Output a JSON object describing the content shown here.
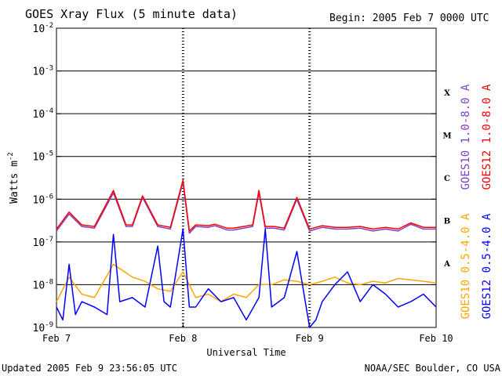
{
  "chart_data": {
    "type": "line",
    "title": "GOES Xray Flux (5 minute data)",
    "begin_text": "Begin:  2005 Feb 7 0000 UTC",
    "xlabel": "Universal Time",
    "ylabel_base": "Watts m",
    "ylabel_exp": "-2",
    "y_scale": "log",
    "ylim": [
      1e-09,
      0.01
    ],
    "x_ticks": [
      "Feb 7",
      "Feb 8",
      "Feb 9",
      "Feb 10"
    ],
    "y_ticks": [
      {
        "base": "10",
        "exp": "-2"
      },
      {
        "base": "10",
        "exp": "-3"
      },
      {
        "base": "10",
        "exp": "-4"
      },
      {
        "base": "10",
        "exp": "-5"
      },
      {
        "base": "10",
        "exp": "-6"
      },
      {
        "base": "10",
        "exp": "-7"
      },
      {
        "base": "10",
        "exp": "-8"
      },
      {
        "base": "10",
        "exp": "-9"
      }
    ],
    "flare_classes": [
      "X",
      "M",
      "C",
      "B",
      "A"
    ],
    "x_unit": "days since 2005 Feb 7 0000 UTC",
    "series": [
      {
        "name": "GOES12 1.0-8.0 A",
        "color": "#ff0000",
        "x": [
          0,
          0.1,
          0.2,
          0.3,
          0.45,
          0.55,
          0.6,
          0.68,
          0.8,
          0.9,
          1.0,
          1.05,
          1.1,
          1.2,
          1.25,
          1.35,
          1.4,
          1.55,
          1.6,
          1.65,
          1.72,
          1.8,
          1.9,
          2.0,
          2.1,
          2.2,
          2.3,
          2.4,
          2.5,
          2.6,
          2.7,
          2.8,
          2.9,
          3.0
        ],
        "y": [
          2e-07,
          5e-07,
          2.5e-07,
          2.3e-07,
          1.6e-06,
          2.5e-07,
          2.5e-07,
          1.2e-06,
          2.5e-07,
          2.2e-07,
          2.8e-06,
          1.8e-07,
          2.5e-07,
          2.4e-07,
          2.6e-07,
          2.1e-07,
          2.1e-07,
          2.5e-07,
          1.6e-06,
          2.3e-07,
          2.3e-07,
          2.1e-07,
          1.1e-06,
          2e-07,
          2.4e-07,
          2.2e-07,
          2.2e-07,
          2.3e-07,
          2e-07,
          2.2e-07,
          2e-07,
          2.8e-07,
          2.2e-07,
          2.2e-07
        ]
      },
      {
        "name": "GOES10 1.0-8.0 A",
        "color": "#8040c0",
        "x": [
          0,
          0.1,
          0.2,
          0.3,
          0.45,
          0.55,
          0.6,
          0.68,
          0.8,
          0.9,
          1.0,
          1.05,
          1.1,
          1.2,
          1.25,
          1.35,
          1.4,
          1.55,
          1.6,
          1.65,
          1.72,
          1.8,
          1.9,
          2.0,
          2.1,
          2.2,
          2.3,
          2.4,
          2.5,
          2.6,
          2.7,
          2.8,
          2.9,
          3.0
        ],
        "y": [
          1.8e-07,
          4.5e-07,
          2.3e-07,
          2.1e-07,
          1.4e-06,
          2.3e-07,
          2.3e-07,
          1.1e-06,
          2.3e-07,
          2e-07,
          2.5e-06,
          1.6e-07,
          2.3e-07,
          2.2e-07,
          2.4e-07,
          1.9e-07,
          1.9e-07,
          2.3e-07,
          1.4e-06,
          2.1e-07,
          2.1e-07,
          1.9e-07,
          1e-06,
          1.8e-07,
          2.2e-07,
          2e-07,
          2e-07,
          2.1e-07,
          1.8e-07,
          2e-07,
          1.8e-07,
          2.6e-07,
          2e-07,
          2e-07
        ]
      },
      {
        "name": "GOES10 0.5-4.0 A",
        "color": "#ffa500",
        "x": [
          0,
          0.1,
          0.2,
          0.3,
          0.45,
          0.6,
          0.7,
          0.8,
          0.9,
          1.0,
          1.1,
          1.2,
          1.3,
          1.4,
          1.5,
          1.6,
          1.7,
          1.8,
          1.9,
          2.0,
          2.1,
          2.2,
          2.3,
          2.4,
          2.5,
          2.6,
          2.7,
          2.8,
          2.9,
          3.0
        ],
        "y": [
          4e-09,
          1.5e-08,
          6e-09,
          5e-09,
          3e-08,
          1.5e-08,
          1.2e-08,
          8e-09,
          7e-09,
          2e-08,
          5e-09,
          6e-09,
          4e-09,
          6e-09,
          5e-09,
          1e-08,
          1e-08,
          1.3e-08,
          1.2e-08,
          1e-08,
          1.2e-08,
          1.5e-08,
          1.1e-08,
          1e-08,
          1.2e-08,
          1.1e-08,
          1.4e-08,
          1.3e-08,
          1.2e-08,
          1.1e-08
        ]
      },
      {
        "name": "GOES12 0.5-4.0 A",
        "color": "#0000ff",
        "x": [
          0,
          0.05,
          0.1,
          0.15,
          0.2,
          0.3,
          0.4,
          0.45,
          0.5,
          0.6,
          0.7,
          0.8,
          0.85,
          0.9,
          1.0,
          1.05,
          1.1,
          1.2,
          1.3,
          1.4,
          1.5,
          1.6,
          1.65,
          1.7,
          1.8,
          1.9,
          2.0,
          2.05,
          2.1,
          2.2,
          2.3,
          2.4,
          2.5,
          2.6,
          2.7,
          2.8,
          2.9,
          3.0
        ],
        "y": [
          3e-09,
          1.5e-09,
          3e-08,
          2e-09,
          4e-09,
          3e-09,
          2e-09,
          1.5e-07,
          4e-09,
          5e-09,
          3e-09,
          8e-08,
          4e-09,
          3e-09,
          2e-07,
          3e-09,
          3e-09,
          8e-09,
          4e-09,
          5e-09,
          1.5e-09,
          5e-09,
          2e-07,
          3e-09,
          5e-09,
          6e-08,
          1e-09,
          1.5e-09,
          4e-09,
          1e-08,
          2e-08,
          4e-09,
          1e-08,
          6e-09,
          3e-09,
          4e-09,
          6e-09,
          3e-09
        ]
      }
    ]
  },
  "footer": {
    "updated": "Updated 2005 Feb  9 23:56:05 UTC",
    "credit": "NOAA/SEC Boulder, CO USA"
  }
}
